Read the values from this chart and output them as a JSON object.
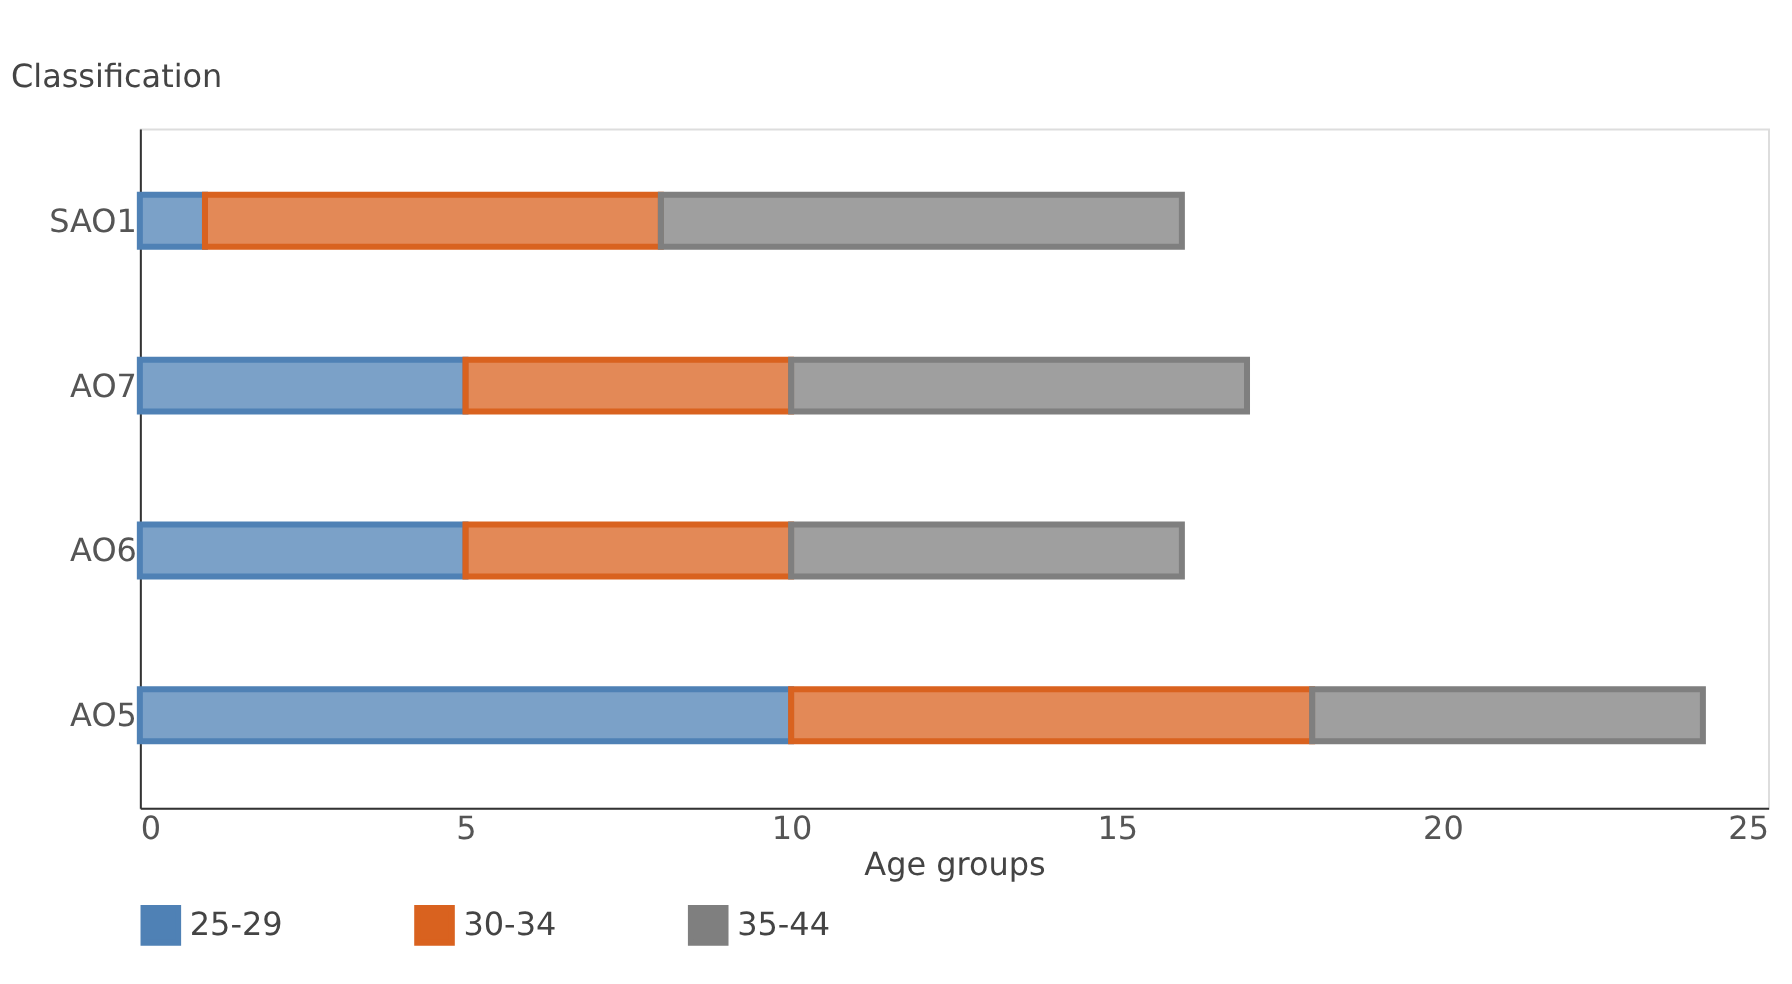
{
  "chart_data": {
    "type": "bar",
    "orientation": "horizontal",
    "stacked": true,
    "xlabel": "Age groups",
    "ylabel": "Classification",
    "categories": [
      "SAO1",
      "AO7",
      "AO6",
      "AO5"
    ],
    "series": [
      {
        "name": "25-29",
        "color": "#4f81b5",
        "values": [
          1,
          5,
          5,
          10
        ]
      },
      {
        "name": "30-34",
        "color": "#d9621f",
        "values": [
          7,
          5,
          5,
          8
        ]
      },
      {
        "name": "35-44",
        "color": "#7f7f7f",
        "values": [
          8,
          7,
          6,
          6
        ]
      }
    ],
    "xlim": [
      0,
      25
    ],
    "xticks": [
      0,
      5,
      10,
      15,
      20,
      25
    ],
    "grid": false,
    "legend": "bottom"
  }
}
